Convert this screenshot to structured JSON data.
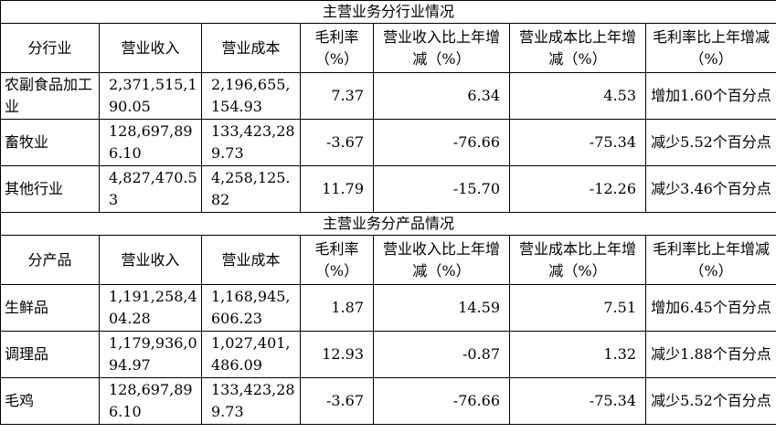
{
  "sections": [
    {
      "title": "主营业务分行业情况",
      "headers": [
        "分行业",
        "营业收入",
        "营业成本",
        "毛利率（%）",
        "营业收入比上年增减（%）",
        "营业成本比上年增减（%）",
        "毛利率比上年增减（%）"
      ],
      "rows": [
        [
          "农副食品加工业",
          "2,371,515,190.05",
          "2,196,655,154.93",
          "7.37",
          "6.34",
          "4.53",
          "增加1.60个百分点"
        ],
        [
          "畜牧业",
          "128,697,896.10",
          "133,423,289.73",
          "-3.67",
          "-76.66",
          "-75.34",
          "减少5.52个百分点"
        ],
        [
          "其他行业",
          "4,827,470.53",
          "4,258,125.82",
          "11.79",
          "-15.70",
          "-12.26",
          "减少3.46个百分点"
        ]
      ]
    },
    {
      "title": "主营业务分产品情况",
      "headers": [
        "分产品",
        "营业收入",
        "营业成本",
        "毛利率（%）",
        "营业收入比上年增减（%）",
        "营业成本比上年增减（%）",
        "毛利率比上年增减（%）"
      ],
      "rows": [
        [
          "生鲜品",
          "1,191,258,404.28",
          "1,168,945,606.23",
          "1.87",
          "14.59",
          "7.51",
          "增加6.45个百分点"
        ],
        [
          "调理品",
          "1,179,936,094.97",
          "1,027,401,486.09",
          "12.93",
          "-0.87",
          "1.32",
          "减少1.88个百分点"
        ],
        [
          "毛鸡",
          "128,697,896.10",
          "133,423,289.73",
          "-3.67",
          "-76.66",
          "-75.34",
          "减少5.52个百分点"
        ]
      ]
    }
  ]
}
